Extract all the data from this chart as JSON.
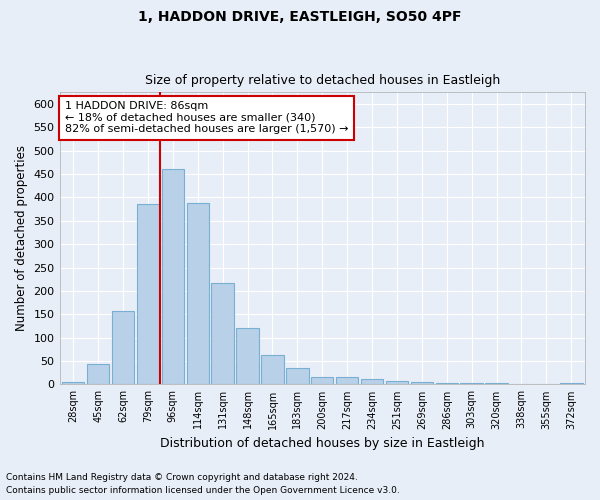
{
  "title1": "1, HADDON DRIVE, EASTLEIGH, SO50 4PF",
  "title2": "Size of property relative to detached houses in Eastleigh",
  "xlabel": "Distribution of detached houses by size in Eastleigh",
  "ylabel": "Number of detached properties",
  "bar_color": "#b8d0e8",
  "bar_edge_color": "#7aafd4",
  "categories": [
    "28sqm",
    "45sqm",
    "62sqm",
    "79sqm",
    "96sqm",
    "114sqm",
    "131sqm",
    "148sqm",
    "165sqm",
    "183sqm",
    "200sqm",
    "217sqm",
    "234sqm",
    "251sqm",
    "269sqm",
    "286sqm",
    "303sqm",
    "320sqm",
    "338sqm",
    "355sqm",
    "372sqm"
  ],
  "values": [
    5,
    43,
    157,
    387,
    460,
    388,
    217,
    120,
    63,
    35,
    16,
    15,
    11,
    8,
    5,
    4,
    3,
    2,
    1,
    1,
    2
  ],
  "ylim": [
    0,
    625
  ],
  "yticks": [
    0,
    50,
    100,
    150,
    200,
    250,
    300,
    350,
    400,
    450,
    500,
    550,
    600
  ],
  "vline_x": 3.5,
  "vline_color": "#cc0000",
  "annotation_text": "1 HADDON DRIVE: 86sqm\n← 18% of detached houses are smaller (340)\n82% of semi-detached houses are larger (1,570) →",
  "annotation_box_facecolor": "#ffffff",
  "annotation_box_edgecolor": "#cc0000",
  "footer1": "Contains HM Land Registry data © Crown copyright and database right 2024.",
  "footer2": "Contains public sector information licensed under the Open Government Licence v3.0.",
  "bg_color": "#e8eef7",
  "plot_bg_color": "#e8eef7",
  "grid_color": "#ffffff"
}
